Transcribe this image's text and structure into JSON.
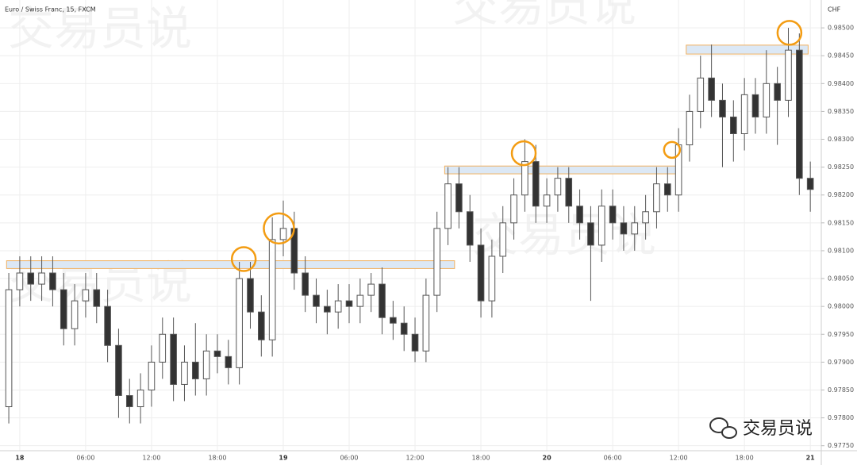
{
  "chart_data": {
    "type": "candlestick",
    "title": "Euro / Swiss Franc, 15, FXCM",
    "y_unit": "CHF",
    "watermark": "交易员说",
    "x": [
      -1,
      0,
      1,
      2,
      3,
      4,
      5,
      6,
      7,
      8,
      9,
      10,
      11,
      12,
      13,
      14,
      15,
      16,
      17,
      18,
      19,
      20,
      21,
      22,
      23,
      24,
      25,
      26,
      27,
      28,
      29,
      30,
      31,
      32,
      33,
      34,
      35,
      36,
      37,
      38,
      39,
      40,
      41,
      42,
      43,
      44,
      45,
      46,
      47,
      48,
      49,
      50,
      51,
      52,
      53,
      54,
      55,
      56,
      57,
      58,
      59,
      60,
      61,
      62,
      63,
      64,
      65,
      66,
      67,
      68,
      69,
      70,
      71,
      72
    ],
    "open": [
      0.9782,
      0.9803,
      0.9806,
      0.9804,
      0.9806,
      0.9803,
      0.9796,
      0.9801,
      0.9803,
      0.98,
      0.9793,
      0.9784,
      0.9782,
      0.9785,
      0.979,
      0.9795,
      0.9786,
      0.979,
      0.9787,
      0.9792,
      0.9791,
      0.9789,
      0.9805,
      0.9799,
      0.9794,
      0.9812,
      0.9814,
      0.9806,
      0.9802,
      0.98,
      0.9799,
      0.9801,
      0.98,
      0.9802,
      0.9804,
      0.9798,
      0.9797,
      0.9795,
      0.9792,
      0.9802,
      0.9814,
      0.9822,
      0.9817,
      0.9811,
      0.9801,
      0.9809,
      0.9815,
      0.982,
      0.9826,
      0.9818,
      0.982,
      0.9823,
      0.9818,
      0.9815,
      0.9811,
      0.9818,
      0.9815,
      0.9813,
      0.9815,
      0.9817,
      0.9822,
      0.982,
      0.9829,
      0.9835,
      0.9841,
      0.9837,
      0.9834,
      0.9831,
      0.9838,
      0.9834,
      0.984,
      0.9837,
      0.9846,
      0.9823
    ],
    "high": [
      0.9806,
      0.9809,
      0.9809,
      0.9809,
      0.9809,
      0.9806,
      0.9804,
      0.9806,
      0.9806,
      0.9803,
      0.9796,
      0.9787,
      0.9788,
      0.9793,
      0.9798,
      0.9798,
      0.9793,
      0.9797,
      0.9795,
      0.9795,
      0.9794,
      0.9808,
      0.9808,
      0.9802,
      0.9816,
      0.9819,
      0.9817,
      0.9809,
      0.9805,
      0.9803,
      0.9804,
      0.9804,
      0.9805,
      0.9806,
      0.9807,
      0.9801,
      0.98,
      0.9798,
      0.9805,
      0.9817,
      0.9825,
      0.9825,
      0.982,
      0.9814,
      0.9812,
      0.9818,
      0.9823,
      0.983,
      0.9829,
      0.9823,
      0.9825,
      0.9825,
      0.9821,
      0.9818,
      0.9821,
      0.9821,
      0.9818,
      0.9818,
      0.982,
      0.9825,
      0.9825,
      0.9832,
      0.9838,
      0.9845,
      0.9847,
      0.984,
      0.9837,
      0.9841,
      0.9841,
      0.9846,
      0.9843,
      0.985,
      0.9849,
      0.9826
    ],
    "low": [
      0.9779,
      0.98,
      0.9801,
      0.9801,
      0.98,
      0.9793,
      0.9793,
      0.9798,
      0.9797,
      0.979,
      0.978,
      0.9779,
      0.9779,
      0.9782,
      0.9787,
      0.9783,
      0.9783,
      0.9784,
      0.9784,
      0.9788,
      0.9786,
      0.9786,
      0.9796,
      0.9791,
      0.9791,
      0.9809,
      0.9803,
      0.9799,
      0.9797,
      0.9795,
      0.9796,
      0.9797,
      0.9797,
      0.9799,
      0.9795,
      0.9794,
      0.9792,
      0.979,
      0.979,
      0.9799,
      0.9811,
      0.9814,
      0.9808,
      0.9798,
      0.9798,
      0.9806,
      0.9812,
      0.9817,
      0.9815,
      0.9815,
      0.9817,
      0.9815,
      0.9812,
      0.9801,
      0.9808,
      0.9812,
      0.981,
      0.981,
      0.9812,
      0.9814,
      0.9817,
      0.9817,
      0.9826,
      0.9832,
      0.9834,
      0.9825,
      0.9826,
      0.9828,
      0.9831,
      0.9831,
      0.9829,
      0.9834,
      0.982,
      0.9817
    ],
    "close": [
      0.9803,
      0.9806,
      0.9804,
      0.9806,
      0.9803,
      0.9796,
      0.9801,
      0.9803,
      0.98,
      0.9793,
      0.9784,
      0.9782,
      0.9785,
      0.979,
      0.9795,
      0.9786,
      0.979,
      0.9787,
      0.9792,
      0.9791,
      0.9789,
      0.9805,
      0.9799,
      0.9794,
      0.9812,
      0.9814,
      0.9806,
      0.9802,
      0.98,
      0.9799,
      0.9801,
      0.98,
      0.9802,
      0.9804,
      0.9798,
      0.9797,
      0.9795,
      0.9792,
      0.9802,
      0.9814,
      0.9822,
      0.9817,
      0.9811,
      0.9801,
      0.9809,
      0.9815,
      0.982,
      0.9826,
      0.9818,
      0.982,
      0.9823,
      0.9818,
      0.9815,
      0.9811,
      0.9818,
      0.9815,
      0.9813,
      0.9815,
      0.9817,
      0.9822,
      0.982,
      0.9829,
      0.9835,
      0.9841,
      0.9837,
      0.9834,
      0.9831,
      0.9838,
      0.9834,
      0.984,
      0.9837,
      0.9846,
      0.9823,
      0.9821
    ],
    "up_color": "#ffffff",
    "down_color": "#333333",
    "wick_color": "#555555",
    "xlim": [
      -1.8,
      73
    ],
    "xticks": [
      {
        "value": 0,
        "label": "18"
      },
      {
        "value": 6,
        "label": "06:00"
      },
      {
        "value": 12,
        "label": "12:00"
      },
      {
        "value": 18,
        "label": "18:00"
      },
      {
        "value": 24,
        "label": "19"
      },
      {
        "value": 30,
        "label": "06:00"
      },
      {
        "value": 36,
        "label": "12:00"
      },
      {
        "value": 42,
        "label": "18:00"
      },
      {
        "value": 48,
        "label": "20"
      },
      {
        "value": 54,
        "label": "06:00"
      },
      {
        "value": 60,
        "label": "12:00"
      },
      {
        "value": 66,
        "label": "18:00"
      },
      {
        "value": 72,
        "label": "21"
      }
    ],
    "ylim": [
      0.97741,
      0.9855
    ],
    "yticks": [
      {
        "value": 0.9775,
        "label": "0.97750"
      },
      {
        "value": 0.978,
        "label": "0.97800"
      },
      {
        "value": 0.9785,
        "label": "0.97850"
      },
      {
        "value": 0.979,
        "label": "0.97900"
      },
      {
        "value": 0.9795,
        "label": "0.97950"
      },
      {
        "value": 0.98,
        "label": "0.98000"
      },
      {
        "value": 0.9805,
        "label": "0.98050"
      },
      {
        "value": 0.981,
        "label": "0.98100"
      },
      {
        "value": 0.9815,
        "label": "0.98150"
      },
      {
        "value": 0.982,
        "label": "0.98200"
      },
      {
        "value": 0.9825,
        "label": "0.98250"
      },
      {
        "value": 0.983,
        "label": "0.98300"
      },
      {
        "value": 0.9835,
        "label": "0.98350"
      },
      {
        "value": 0.984,
        "label": "0.98400"
      },
      {
        "value": 0.9845,
        "label": "0.98450"
      },
      {
        "value": 0.985,
        "label": "0.98500"
      }
    ],
    "grid": true,
    "zones": [
      {
        "x": [
          -1.2,
          39.6
        ],
        "y": [
          0.98068,
          0.98082
        ]
      },
      {
        "x": [
          38.7,
          60.0
        ],
        "y": [
          0.98238,
          0.98252
        ]
      },
      {
        "x": [
          60.7,
          71.8
        ],
        "y": [
          0.98453,
          0.98469
        ]
      }
    ],
    "markers": [
      {
        "x": 20.4,
        "y": 0.98085
      },
      {
        "x": 23.6,
        "y": 0.9814
      },
      {
        "x": 45.9,
        "y": 0.98275
      },
      {
        "x": 59.4,
        "y": 0.98281
      },
      {
        "x": 70.1,
        "y": 0.98491
      }
    ]
  }
}
